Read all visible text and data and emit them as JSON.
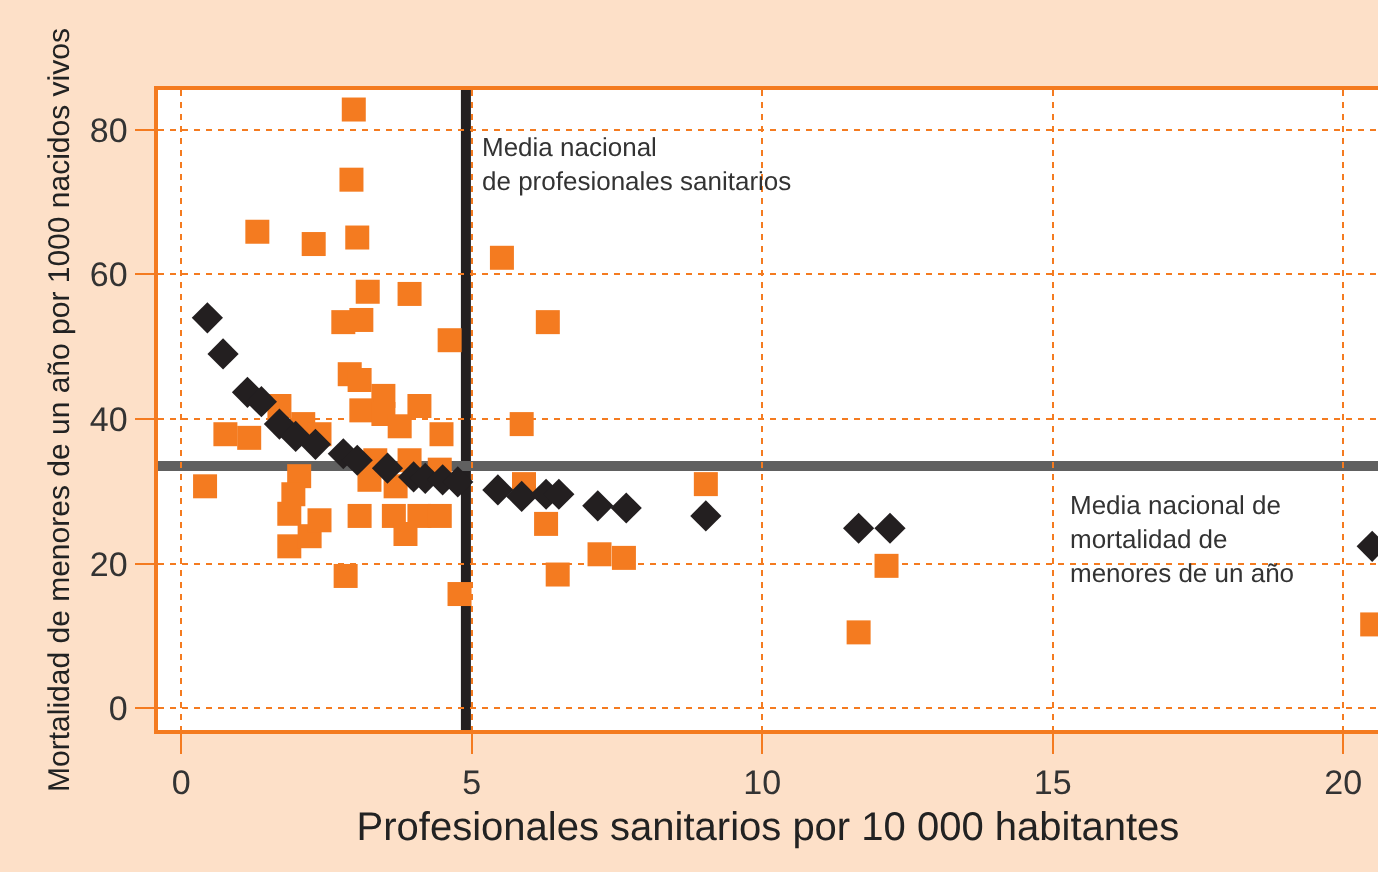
{
  "chart_data": {
    "type": "scatter",
    "xlabel": "Profesionales sanitarios por 10 000 habitantes",
    "ylabel": "Mortalidad de menores de un año por 1000 nacidos vivos",
    "xlim": [
      -0.4,
      20.6
    ],
    "ylim": [
      -3,
      85.5
    ],
    "xticks": [
      0,
      5,
      10,
      15,
      20
    ],
    "yticks": [
      0,
      20,
      40,
      60,
      80
    ],
    "grid": true,
    "series": [
      {
        "color": "#f47b20",
        "marker": "square",
        "x": [
          0.41,
          0.76,
          1.17,
          1.31,
          1.69,
          2.1,
          2.38,
          2.28,
          2.97,
          2.93,
          3.03,
          3.21,
          3.93,
          2.79,
          3.1,
          4.62,
          5.52,
          6.31,
          5.86,
          2.9,
          3.07,
          3.48,
          3.1,
          3.48,
          4.1,
          3.76,
          4.48,
          3.34,
          3.93,
          3.24,
          3.69,
          4.45,
          2.03,
          1.93,
          1.86,
          1.86,
          2.21,
          2.38,
          3.07,
          3.66,
          3.86,
          4.1,
          4.45,
          2.83,
          4.79,
          5.9,
          6.28,
          6.48,
          7.2,
          7.62,
          9.03,
          12.14,
          11.66,
          20.5
        ],
        "values": [
          30.7,
          37.9,
          37.4,
          65.9,
          41.8,
          39.3,
          37.9,
          64.2,
          82.8,
          73.1,
          65.1,
          57.6,
          57.3,
          53.4,
          53.7,
          50.9,
          62.3,
          53.4,
          39.3,
          46.2,
          45.4,
          43.2,
          41.2,
          40.7,
          41.8,
          39,
          37.9,
          34.3,
          34.3,
          31.6,
          30.7,
          33,
          32.1,
          29.6,
          26.9,
          22.4,
          23.8,
          26,
          26.6,
          26.6,
          24.1,
          26.6,
          26.6,
          18.3,
          15.8,
          31,
          25.5,
          18.5,
          21.3,
          20.8,
          31,
          19.7,
          10.5,
          11.6
        ]
      },
      {
        "color": "#231f20",
        "marker": "diamond",
        "x": [
          0.45,
          0.72,
          1.14,
          1.38,
          1.69,
          1.97,
          2.31,
          2.79,
          3.03,
          3.55,
          4.0,
          4.2,
          4.5,
          4.76,
          5.45,
          5.86,
          6.28,
          6.5,
          7.17,
          7.66,
          9.03,
          11.66,
          12.2,
          20.5
        ],
        "values": [
          54,
          49,
          43.7,
          42.4,
          39.3,
          37.6,
          36.5,
          35.2,
          34.3,
          33.2,
          32,
          31.8,
          31.6,
          31.3,
          30.2,
          29.3,
          29.6,
          29.6,
          28,
          27.7,
          26.6,
          24.9,
          24.9,
          22.4
        ]
      }
    ],
    "ref_lines": [
      {
        "axis": "x",
        "value": 4.9,
        "label": "Media nacional\nde profesionales sanitarios",
        "color": "#231f20"
      },
      {
        "axis": "y",
        "value": 33.5,
        "label": "Media nacional de\nmortalidad de\nmenores de un año",
        "color": "#606060"
      }
    ]
  }
}
